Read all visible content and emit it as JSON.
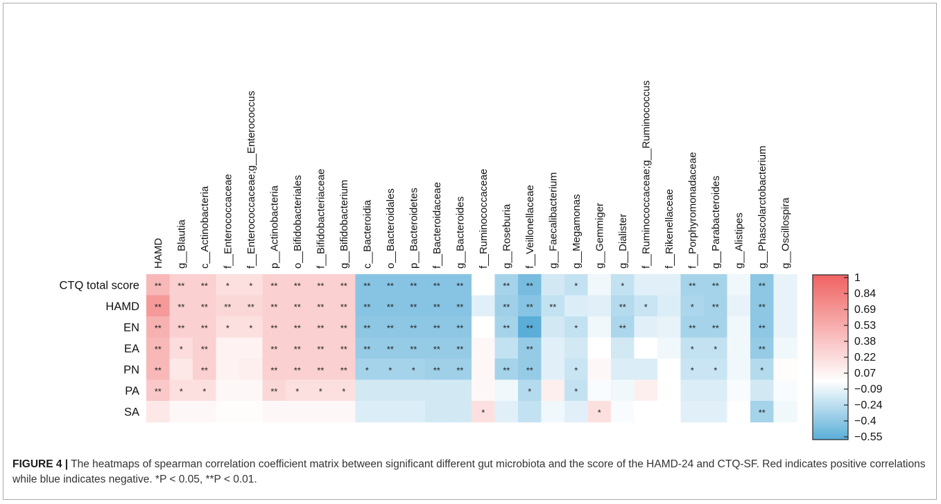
{
  "caption": {
    "label": "FIGURE 4 |",
    "text": "The heatmaps of spearman correlation coefficient matrix between significant different gut microbiota and the score of the HAMD-24 and CTQ-SF. Red indicates positive correlations while blue indicates negative. *P < 0.05, **P < 0.01."
  },
  "colors": {
    "positive": "#f06262",
    "negative": "#5aaed8",
    "neutral": "#ffffff"
  },
  "chart_data": {
    "type": "heatmap",
    "rows": [
      "CTQ total score",
      "HAMD",
      "EN",
      "EA",
      "PN",
      "PA",
      "SA"
    ],
    "columns": [
      "HAMD",
      "g__Blautia",
      "c__Actinobacteria",
      "f__Enterococcaceae",
      "f__Enterococcaceae;g__Enterococcus",
      "p__Actinobacteria",
      "o__Bifidobacteriales",
      "f__Bifidobacteriaceae",
      "g__Bifidobacterium",
      "c__Bacteroidia",
      "o__Bacteroidales",
      "p__Bacteroidetes",
      "f__Bacteroidaceae",
      "g__Bacteroides",
      "f__Ruminococcaceae",
      "g__Roseburia",
      "f__Veillonellaceae",
      "g__Faecalibacterium",
      "g__Megamonas",
      "g__Gemmiger",
      "g__Dialister",
      "f__Ruminococcaceae;g__Ruminococcus",
      "f__Rikenellaceae",
      "f__Porphyromonadaceae",
      "g__Parabacteroides",
      "g__Alistipes",
      "g__Phascolarctobacterium",
      "g__Oscillospira"
    ],
    "values": [
      [
        0.45,
        0.3,
        0.3,
        0.2,
        0.2,
        0.3,
        0.3,
        0.3,
        0.3,
        -0.4,
        -0.4,
        -0.4,
        -0.4,
        -0.4,
        0.0,
        -0.3,
        -0.45,
        -0.15,
        -0.2,
        -0.05,
        -0.2,
        -0.1,
        -0.1,
        -0.3,
        -0.3,
        -0.05,
        -0.38,
        -0.08
      ],
      [
        0.65,
        0.3,
        0.3,
        0.25,
        0.25,
        0.3,
        0.3,
        0.3,
        0.3,
        -0.4,
        -0.4,
        -0.4,
        -0.4,
        -0.4,
        -0.1,
        -0.32,
        -0.4,
        -0.2,
        -0.12,
        -0.1,
        -0.25,
        -0.18,
        -0.12,
        -0.28,
        -0.3,
        -0.08,
        -0.38,
        -0.08
      ],
      [
        0.5,
        0.3,
        0.3,
        0.2,
        0.2,
        0.3,
        0.3,
        0.3,
        0.3,
        -0.38,
        -0.38,
        -0.38,
        -0.38,
        -0.38,
        0.0,
        -0.3,
        -0.55,
        -0.15,
        -0.2,
        -0.05,
        -0.28,
        -0.1,
        -0.08,
        -0.3,
        -0.3,
        -0.05,
        -0.38,
        -0.08
      ],
      [
        0.45,
        0.22,
        0.3,
        0.08,
        0.08,
        0.3,
        0.3,
        0.3,
        0.3,
        -0.35,
        -0.35,
        -0.35,
        -0.35,
        -0.35,
        0.05,
        -0.2,
        -0.35,
        -0.1,
        -0.15,
        0.0,
        -0.15,
        0.0,
        -0.05,
        -0.2,
        -0.2,
        -0.05,
        -0.35,
        -0.05
      ],
      [
        0.45,
        0.15,
        0.3,
        0.08,
        0.1,
        0.3,
        0.3,
        0.3,
        0.3,
        -0.3,
        -0.3,
        -0.3,
        -0.32,
        -0.32,
        0.05,
        -0.3,
        -0.35,
        -0.1,
        -0.18,
        0.05,
        -0.12,
        -0.12,
        0.0,
        -0.18,
        -0.18,
        -0.05,
        -0.25,
        0.02
      ],
      [
        0.35,
        0.2,
        0.2,
        0.05,
        0.05,
        0.25,
        0.2,
        0.2,
        0.2,
        -0.15,
        -0.15,
        -0.15,
        -0.15,
        -0.15,
        0.05,
        -0.05,
        -0.25,
        0.1,
        -0.2,
        -0.02,
        -0.05,
        0.1,
        0.0,
        -0.12,
        -0.12,
        -0.02,
        -0.15,
        -0.02
      ],
      [
        0.15,
        0.05,
        0.05,
        0.02,
        0.02,
        0.05,
        0.05,
        0.05,
        0.05,
        -0.12,
        -0.12,
        -0.12,
        -0.15,
        -0.15,
        0.2,
        -0.1,
        -0.2,
        -0.05,
        -0.1,
        0.2,
        -0.02,
        0.0,
        0.0,
        -0.1,
        -0.1,
        0.0,
        -0.3,
        -0.05
      ]
    ],
    "significance": [
      [
        "**",
        "**",
        "**",
        "*",
        "*",
        "**",
        "**",
        "**",
        "**",
        "**",
        "**",
        "**",
        "**",
        "**",
        "",
        "**",
        "**",
        "",
        "*",
        "",
        "*",
        "",
        "",
        "**",
        "**",
        "",
        "**",
        ""
      ],
      [
        "**",
        "**",
        "**",
        "**",
        "**",
        "**",
        "**",
        "**",
        "**",
        "**",
        "**",
        "**",
        "**",
        "**",
        "",
        "**",
        "**",
        "**",
        "",
        "",
        "**",
        "*",
        "",
        "*",
        "**",
        "",
        "**",
        ""
      ],
      [
        "**",
        "**",
        "**",
        "*",
        "*",
        "**",
        "**",
        "**",
        "**",
        "**",
        "**",
        "**",
        "**",
        "**",
        "",
        "**",
        "**",
        "",
        "*",
        "",
        "**",
        "",
        "",
        "**",
        "**",
        "",
        "**",
        ""
      ],
      [
        "**",
        "*",
        "**",
        "",
        "",
        "**",
        "**",
        "**",
        "**",
        "**",
        "**",
        "**",
        "**",
        "**",
        "",
        "",
        "**",
        "",
        "",
        "",
        "",
        "",
        "",
        "*",
        "*",
        "",
        "**",
        ""
      ],
      [
        "**",
        "",
        "**",
        "",
        "",
        "**",
        "**",
        "**",
        "**",
        "*",
        "*",
        "*",
        "**",
        "**",
        "",
        "**",
        "**",
        "",
        "*",
        "",
        "",
        "",
        "",
        "*",
        "*",
        "",
        "*",
        ""
      ],
      [
        "**",
        "*",
        "*",
        "",
        "",
        "**",
        "*",
        "*",
        "*",
        "",
        "",
        "",
        "",
        "",
        "",
        "",
        "*",
        "",
        "*",
        "",
        "",
        "",
        "",
        "",
        "",
        "",
        "",
        ""
      ],
      [
        "",
        "",
        "",
        "",
        "",
        "",
        "",
        "",
        "",
        "",
        "",
        "",
        "",
        "",
        "*",
        "",
        "",
        "",
        "",
        "*",
        "",
        "",
        "",
        "",
        "",
        "",
        "**",
        ""
      ]
    ],
    "color_range": [
      -0.55,
      1
    ],
    "colorbar_ticks": [
      "1",
      "0.84",
      "0.69",
      "0.53",
      "0.38",
      "0.22",
      "0.07",
      "−0.09",
      "−0.24",
      "−0.4",
      "−0.55"
    ]
  }
}
